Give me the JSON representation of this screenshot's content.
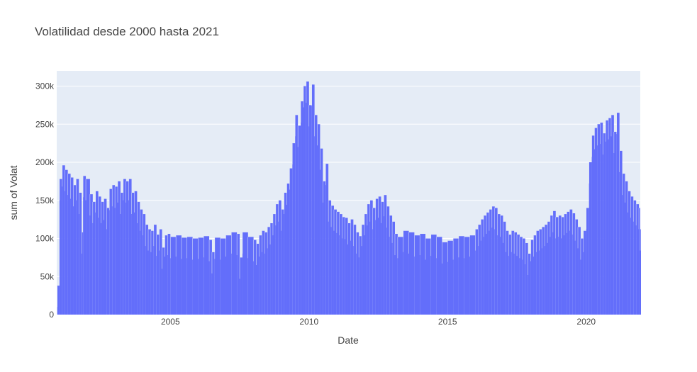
{
  "chart_data": {
    "type": "bar",
    "title": "Volatilidad desde 2000 hasta 2021",
    "xlabel": "Date",
    "ylabel": "sum of Volat",
    "xlim": [
      2000.9,
      2021.95
    ],
    "ylim": [
      0,
      320000
    ],
    "x_ticks": [
      {
        "label": "2005",
        "value": 2005
      },
      {
        "label": "2010",
        "value": 2010
      },
      {
        "label": "2015",
        "value": 2015
      },
      {
        "label": "2020",
        "value": 2020
      }
    ],
    "y_ticks": [
      {
        "label": "0",
        "value": 0
      },
      {
        "label": "50k",
        "value": 50000
      },
      {
        "label": "100k",
        "value": 100000
      },
      {
        "label": "150k",
        "value": 150000
      },
      {
        "label": "200k",
        "value": 200000
      },
      {
        "label": "250k",
        "value": 250000
      },
      {
        "label": "300k",
        "value": 300000
      }
    ],
    "grid": true,
    "bar_color": "#636efa",
    "plot_background": "#e5ecf6",
    "series": [
      {
        "points": [
          [
            2000.92,
            38000
          ],
          [
            2001.0,
            178000
          ],
          [
            2001.1,
            196000
          ],
          [
            2001.2,
            190000
          ],
          [
            2001.3,
            185000
          ],
          [
            2001.4,
            180000
          ],
          [
            2001.5,
            170000
          ],
          [
            2001.6,
            178000
          ],
          [
            2001.7,
            160000
          ],
          [
            2001.8,
            108000
          ],
          [
            2001.85,
            182000
          ],
          [
            2001.95,
            178000
          ],
          [
            2002.1,
            158000
          ],
          [
            2002.2,
            148000
          ],
          [
            2002.3,
            162000
          ],
          [
            2002.4,
            155000
          ],
          [
            2002.5,
            148000
          ],
          [
            2002.6,
            152000
          ],
          [
            2002.7,
            140000
          ],
          [
            2002.8,
            165000
          ],
          [
            2002.9,
            170000
          ],
          [
            2003.0,
            168000
          ],
          [
            2003.1,
            175000
          ],
          [
            2003.2,
            160000
          ],
          [
            2003.3,
            178000
          ],
          [
            2003.4,
            175000
          ],
          [
            2003.5,
            178000
          ],
          [
            2003.6,
            160000
          ],
          [
            2003.7,
            162000
          ],
          [
            2003.8,
            148000
          ],
          [
            2003.9,
            138000
          ],
          [
            2004.0,
            132000
          ],
          [
            2004.1,
            118000
          ],
          [
            2004.2,
            112000
          ],
          [
            2004.3,
            110000
          ],
          [
            2004.4,
            118000
          ],
          [
            2004.5,
            105000
          ],
          [
            2004.6,
            112000
          ],
          [
            2004.7,
            88000
          ],
          [
            2004.8,
            104000
          ],
          [
            2004.9,
            106000
          ],
          [
            2005.0,
            102000
          ],
          [
            2005.2,
            104000
          ],
          [
            2005.4,
            101000
          ],
          [
            2005.6,
            102000
          ],
          [
            2005.8,
            100000
          ],
          [
            2006.0,
            101000
          ],
          [
            2006.2,
            103000
          ],
          [
            2006.4,
            98000
          ],
          [
            2006.5,
            82000
          ],
          [
            2006.6,
            101000
          ],
          [
            2006.8,
            100000
          ],
          [
            2007.0,
            104000
          ],
          [
            2007.2,
            108000
          ],
          [
            2007.4,
            106000
          ],
          [
            2007.5,
            75000
          ],
          [
            2007.6,
            108000
          ],
          [
            2007.8,
            102000
          ],
          [
            2008.0,
            98000
          ],
          [
            2008.1,
            93000
          ],
          [
            2008.2,
            104000
          ],
          [
            2008.3,
            110000
          ],
          [
            2008.4,
            108000
          ],
          [
            2008.5,
            115000
          ],
          [
            2008.6,
            120000
          ],
          [
            2008.7,
            132000
          ],
          [
            2008.8,
            145000
          ],
          [
            2008.9,
            150000
          ],
          [
            2009.0,
            138000
          ],
          [
            2009.1,
            160000
          ],
          [
            2009.2,
            172000
          ],
          [
            2009.3,
            192000
          ],
          [
            2009.4,
            225000
          ],
          [
            2009.5,
            262000
          ],
          [
            2009.6,
            248000
          ],
          [
            2009.7,
            280000
          ],
          [
            2009.8,
            300000
          ],
          [
            2009.9,
            306000
          ],
          [
            2010.0,
            275000
          ],
          [
            2010.1,
            302000
          ],
          [
            2010.2,
            262000
          ],
          [
            2010.3,
            250000
          ],
          [
            2010.4,
            218000
          ],
          [
            2010.5,
            175000
          ],
          [
            2010.6,
            198000
          ],
          [
            2010.7,
            150000
          ],
          [
            2010.8,
            143000
          ],
          [
            2010.9,
            138000
          ],
          [
            2011.0,
            135000
          ],
          [
            2011.1,
            132000
          ],
          [
            2011.2,
            128000
          ],
          [
            2011.3,
            127000
          ],
          [
            2011.4,
            120000
          ],
          [
            2011.5,
            125000
          ],
          [
            2011.6,
            118000
          ],
          [
            2011.7,
            108000
          ],
          [
            2011.8,
            103000
          ],
          [
            2011.9,
            118000
          ],
          [
            2012.0,
            132000
          ],
          [
            2012.1,
            145000
          ],
          [
            2012.2,
            150000
          ],
          [
            2012.3,
            140000
          ],
          [
            2012.4,
            152000
          ],
          [
            2012.5,
            155000
          ],
          [
            2012.6,
            148000
          ],
          [
            2012.7,
            157000
          ],
          [
            2012.8,
            142000
          ],
          [
            2012.9,
            130000
          ],
          [
            2013.0,
            122000
          ],
          [
            2013.1,
            106000
          ],
          [
            2013.2,
            102000
          ],
          [
            2013.4,
            110000
          ],
          [
            2013.6,
            108000
          ],
          [
            2013.8,
            104000
          ],
          [
            2014.0,
            106000
          ],
          [
            2014.2,
            100000
          ],
          [
            2014.4,
            105000
          ],
          [
            2014.6,
            102000
          ],
          [
            2014.8,
            95000
          ],
          [
            2015.0,
            97000
          ],
          [
            2015.2,
            100000
          ],
          [
            2015.4,
            103000
          ],
          [
            2015.6,
            102000
          ],
          [
            2015.8,
            104000
          ],
          [
            2016.0,
            112000
          ],
          [
            2016.1,
            118000
          ],
          [
            2016.2,
            125000
          ],
          [
            2016.3,
            130000
          ],
          [
            2016.4,
            134000
          ],
          [
            2016.5,
            138000
          ],
          [
            2016.6,
            142000
          ],
          [
            2016.7,
            140000
          ],
          [
            2016.8,
            132000
          ],
          [
            2016.9,
            130000
          ],
          [
            2017.0,
            122000
          ],
          [
            2017.1,
            110000
          ],
          [
            2017.2,
            105000
          ],
          [
            2017.3,
            110000
          ],
          [
            2017.4,
            108000
          ],
          [
            2017.5,
            105000
          ],
          [
            2017.6,
            102000
          ],
          [
            2017.7,
            100000
          ],
          [
            2017.8,
            94000
          ],
          [
            2017.9,
            80000
          ],
          [
            2018.0,
            98000
          ],
          [
            2018.1,
            104000
          ],
          [
            2018.2,
            110000
          ],
          [
            2018.3,
            112000
          ],
          [
            2018.4,
            115000
          ],
          [
            2018.5,
            118000
          ],
          [
            2018.6,
            122000
          ],
          [
            2018.7,
            130000
          ],
          [
            2018.8,
            136000
          ],
          [
            2018.9,
            128000
          ],
          [
            2019.0,
            130000
          ],
          [
            2019.1,
            128000
          ],
          [
            2019.2,
            132000
          ],
          [
            2019.3,
            135000
          ],
          [
            2019.4,
            138000
          ],
          [
            2019.5,
            133000
          ],
          [
            2019.6,
            125000
          ],
          [
            2019.7,
            115000
          ],
          [
            2019.8,
            100000
          ],
          [
            2019.9,
            110000
          ],
          [
            2020.0,
            140000
          ],
          [
            2020.1,
            200000
          ],
          [
            2020.2,
            235000
          ],
          [
            2020.3,
            245000
          ],
          [
            2020.4,
            250000
          ],
          [
            2020.5,
            252000
          ],
          [
            2020.6,
            238000
          ],
          [
            2020.7,
            255000
          ],
          [
            2020.8,
            258000
          ],
          [
            2020.9,
            262000
          ],
          [
            2021.0,
            240000
          ],
          [
            2021.1,
            265000
          ],
          [
            2021.2,
            215000
          ],
          [
            2021.3,
            185000
          ],
          [
            2021.4,
            175000
          ],
          [
            2021.5,
            162000
          ],
          [
            2021.6,
            155000
          ],
          [
            2021.7,
            150000
          ],
          [
            2021.8,
            145000
          ],
          [
            2021.9,
            140000
          ],
          [
            2021.95,
            112000
          ]
        ]
      }
    ]
  }
}
